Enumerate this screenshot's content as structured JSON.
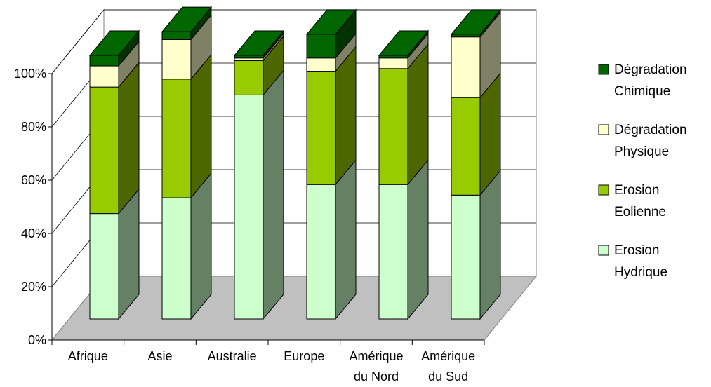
{
  "chart_data": {
    "type": "bar",
    "stacked": true,
    "three_d": true,
    "categories": [
      [
        "Afrique"
      ],
      [
        "Asie"
      ],
      [
        "Australie"
      ],
      [
        "Europe"
      ],
      [
        "Amérique",
        "du Nord"
      ],
      [
        "Amérique",
        "du Sud"
      ]
    ],
    "series": [
      {
        "name": [
          "Erosion",
          "Hydrique"
        ],
        "values": [
          40,
          46,
          85,
          51,
          51,
          47
        ],
        "color": "#ccffcc"
      },
      {
        "name": [
          "Erosion",
          "Eolienne"
        ],
        "values": [
          48,
          45,
          13,
          43,
          44,
          37
        ],
        "color": "#99cc00"
      },
      {
        "name": [
          "Dégradation",
          "Physique"
        ],
        "values": [
          8,
          15,
          1,
          5,
          4,
          23
        ],
        "color": "#ffffcc"
      },
      {
        "name": [
          "Dégradation",
          "Chimique"
        ],
        "values": [
          4,
          3,
          1,
          9,
          1,
          1
        ],
        "color": "#006600"
      }
    ],
    "y_ticks": [
      "0%",
      "20%",
      "40%",
      "60%",
      "80%",
      "100%"
    ],
    "ylim": [
      0,
      100
    ],
    "grid": true,
    "legend_position": "right",
    "wall_color": "#ffffff",
    "floor_color": "#c0c0c0"
  }
}
